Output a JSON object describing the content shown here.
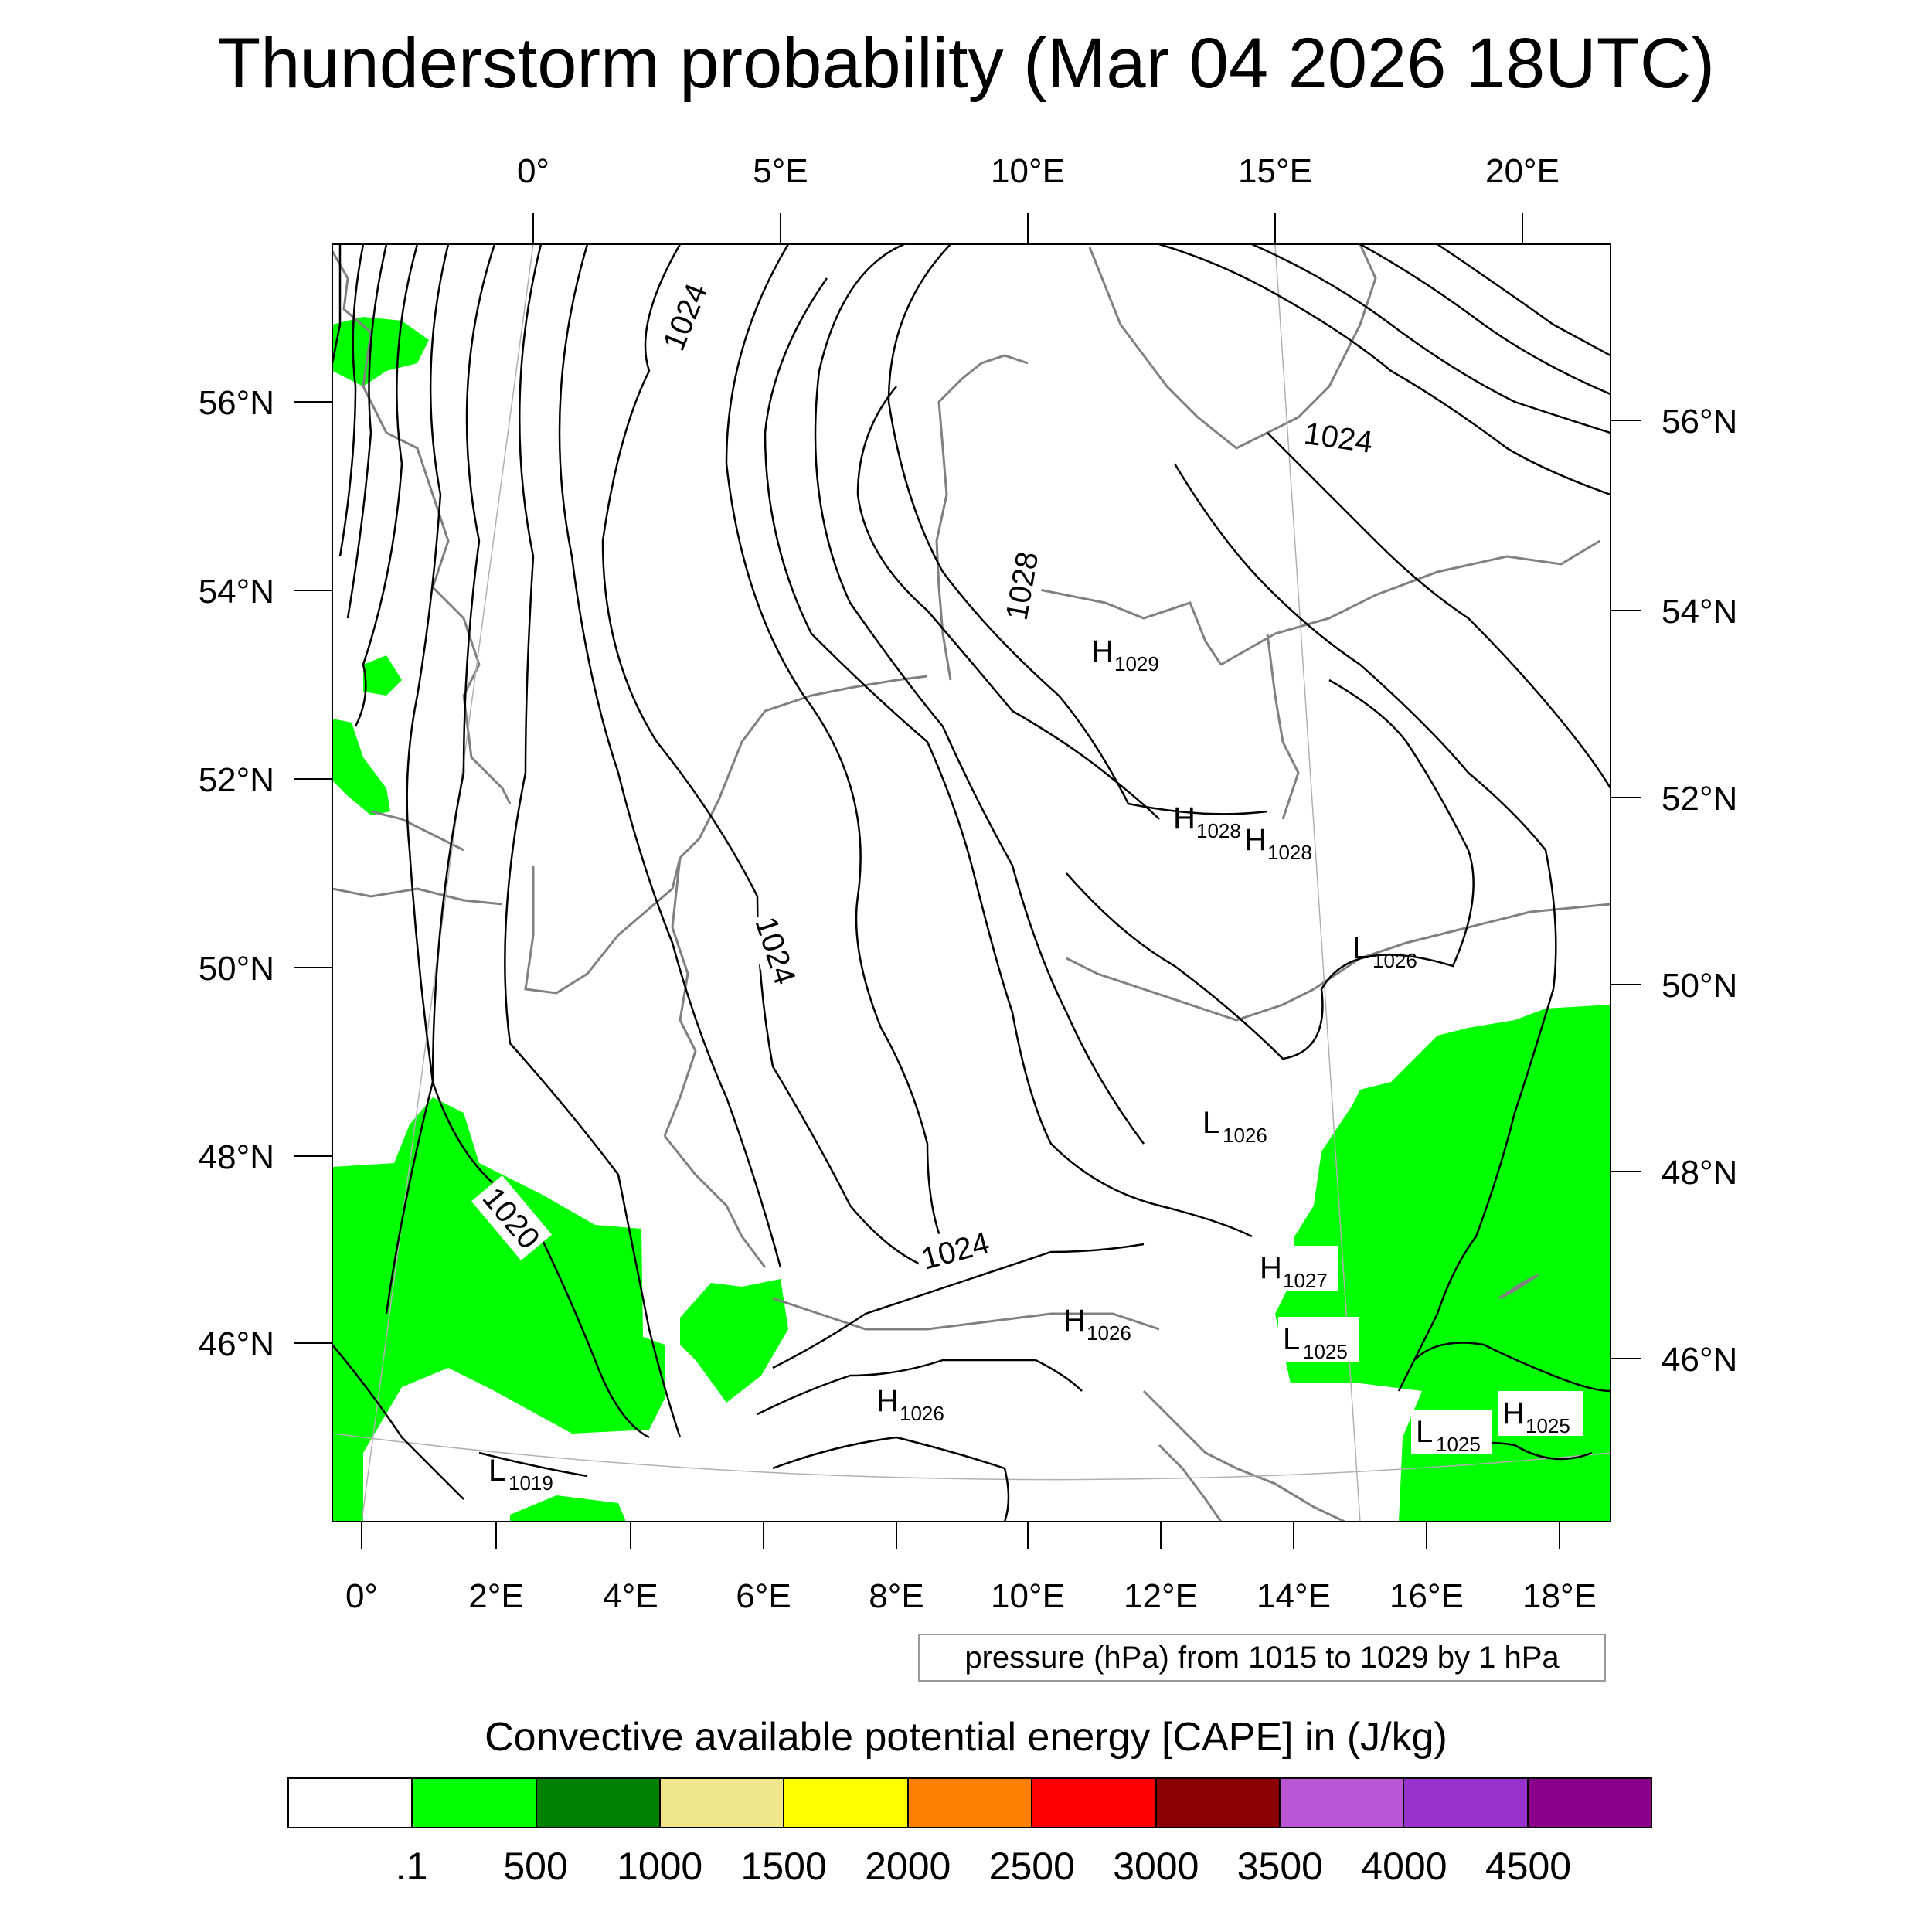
{
  "title": "Thunderstorm probability (Mar 04 2026 18UTC)",
  "map": {
    "top_lon_ticks": [
      "0°",
      "5°E",
      "10°E",
      "15°E",
      "20°E"
    ],
    "bottom_lon_ticks": [
      "0°",
      "2°E",
      "4°E",
      "6°E",
      "8°E",
      "10°E",
      "12°E",
      "14°E",
      "16°E",
      "18°E"
    ],
    "left_lat_ticks": [
      "56°N",
      "54°N",
      "52°N",
      "50°N",
      "48°N",
      "46°N"
    ],
    "right_lat_ticks": [
      "56°N",
      "54°N",
      "52°N",
      "50°N",
      "48°N",
      "46°N"
    ],
    "contour_labels": [
      "1024",
      "1024",
      "1028",
      "1024",
      "1024",
      "1020"
    ],
    "pressure_centers": [
      {
        "letter": "H",
        "value": "1029"
      },
      {
        "letter": "H",
        "value": "1028"
      },
      {
        "letter": "H",
        "value": "1028"
      },
      {
        "letter": "L",
        "value": "1026"
      },
      {
        "letter": "L",
        "value": "1026"
      },
      {
        "letter": "H",
        "value": "1027"
      },
      {
        "letter": "H",
        "value": "1026"
      },
      {
        "letter": "L",
        "value": "1025"
      },
      {
        "letter": "H",
        "value": "1026"
      },
      {
        "letter": "L",
        "value": "1025"
      },
      {
        "letter": "H",
        "value": "1025"
      },
      {
        "letter": "L",
        "value": "1019"
      }
    ],
    "cape_color": "#00ff00",
    "contour_color": "#000000",
    "coastline_color": "#808080"
  },
  "info_box": "pressure (hPa) from 1015 to 1029 by 1 hPa",
  "colorbar": {
    "title": "Convective available potential energy [CAPE] in (J/kg)",
    "colors": [
      "#ffffff",
      "#00ff00",
      "#008000",
      "#f0e68c",
      "#ffff00",
      "#ff8000",
      "#ff0000",
      "#8b0000",
      "#ba55d3",
      "#9932cc",
      "#8b008b"
    ],
    "labels": [
      ".1",
      "500",
      "1000",
      "1500",
      "2000",
      "2500",
      "3000",
      "3500",
      "4000",
      "4500"
    ]
  }
}
